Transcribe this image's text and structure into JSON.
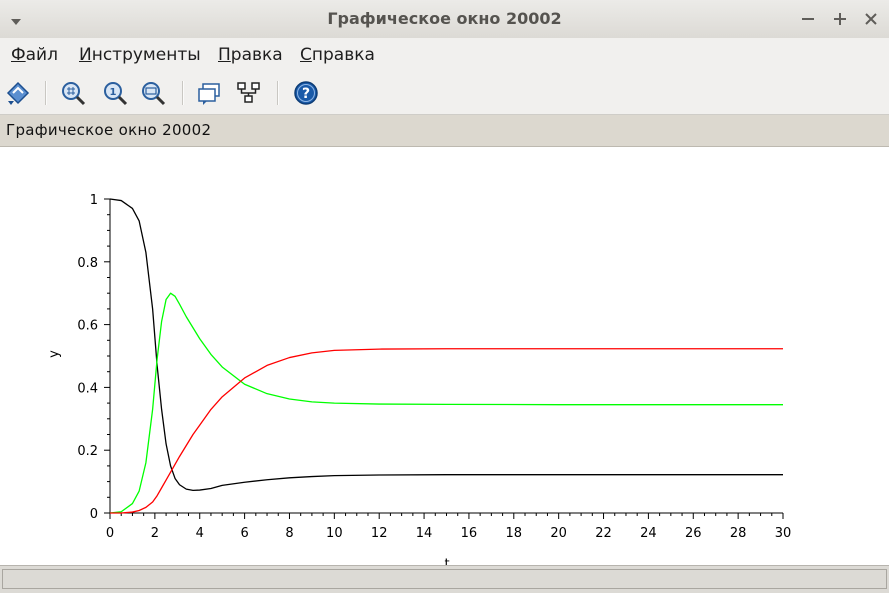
{
  "window": {
    "title": "Графическое окно 20002",
    "controls": {
      "minimize": "–",
      "maximize": "+",
      "close": "×"
    }
  },
  "menu": {
    "items": [
      {
        "mnemonic": "Ф",
        "rest": "айл"
      },
      {
        "mnemonic": "И",
        "rest": "нструменты"
      },
      {
        "mnemonic": "П",
        "rest": "равка"
      },
      {
        "mnemonic": "С",
        "rest": "правка"
      }
    ]
  },
  "toolbar": {
    "icons": [
      "rotate-icon",
      "zoom-in-icon",
      "zoom-original-icon",
      "zoom-out-icon",
      "datatip-icon",
      "editor-icon",
      "help-icon"
    ]
  },
  "infobar": {
    "label": "Графическое окно 20002"
  },
  "statusbar": {
    "text": ""
  },
  "colors": {
    "accent": "#1a5aa8",
    "series_black": "#000000",
    "series_green": "#00ff00",
    "series_red": "#ff0000"
  },
  "chart_data": {
    "type": "line",
    "title": "",
    "xlabel": "t",
    "ylabel": "y",
    "xlim": [
      0,
      30
    ],
    "ylim": [
      0,
      1
    ],
    "xticks": [
      "0",
      "2",
      "4",
      "6",
      "8",
      "10",
      "12",
      "14",
      "16",
      "18",
      "20",
      "22",
      "24",
      "26",
      "28",
      "30"
    ],
    "yticks": [
      "0",
      "0.2",
      "0.4",
      "0.6",
      "0.8",
      "1"
    ],
    "grid": false,
    "series": [
      {
        "name": "black",
        "color": "#000000",
        "x": [
          0,
          0.5,
          1.0,
          1.3,
          1.6,
          1.9,
          2.1,
          2.3,
          2.5,
          2.7,
          2.9,
          3.1,
          3.4,
          3.7,
          4.0,
          4.5,
          5,
          6,
          7,
          8,
          9,
          10,
          12,
          15,
          20,
          25,
          30
        ],
        "y": [
          1.0,
          0.995,
          0.97,
          0.93,
          0.83,
          0.65,
          0.47,
          0.33,
          0.22,
          0.15,
          0.11,
          0.09,
          0.076,
          0.072,
          0.073,
          0.078,
          0.088,
          0.098,
          0.106,
          0.112,
          0.116,
          0.119,
          0.121,
          0.122,
          0.122,
          0.122,
          0.122
        ]
      },
      {
        "name": "green",
        "color": "#00ff00",
        "x": [
          0,
          0.5,
          1.0,
          1.3,
          1.6,
          1.9,
          2.1,
          2.3,
          2.5,
          2.7,
          2.9,
          3.1,
          3.4,
          3.7,
          4.0,
          4.5,
          5,
          6,
          7,
          8,
          9,
          10,
          12,
          15,
          20,
          25,
          30
        ],
        "y": [
          0.0,
          0.004,
          0.03,
          0.07,
          0.16,
          0.33,
          0.49,
          0.61,
          0.68,
          0.7,
          0.69,
          0.665,
          0.625,
          0.59,
          0.555,
          0.505,
          0.465,
          0.41,
          0.38,
          0.363,
          0.354,
          0.35,
          0.347,
          0.346,
          0.345,
          0.345,
          0.345
        ]
      },
      {
        "name": "red",
        "color": "#ff0000",
        "x": [
          0,
          0.5,
          1.0,
          1.3,
          1.6,
          1.9,
          2.1,
          2.3,
          2.5,
          2.7,
          2.9,
          3.1,
          3.4,
          3.7,
          4.0,
          4.5,
          5,
          6,
          7,
          8,
          9,
          10,
          12,
          15,
          20,
          25,
          30
        ],
        "y": [
          0.0,
          0.0,
          0.003,
          0.008,
          0.018,
          0.035,
          0.055,
          0.08,
          0.105,
          0.13,
          0.155,
          0.18,
          0.215,
          0.25,
          0.28,
          0.33,
          0.37,
          0.43,
          0.47,
          0.495,
          0.51,
          0.518,
          0.522,
          0.523,
          0.523,
          0.523,
          0.523
        ]
      }
    ]
  }
}
